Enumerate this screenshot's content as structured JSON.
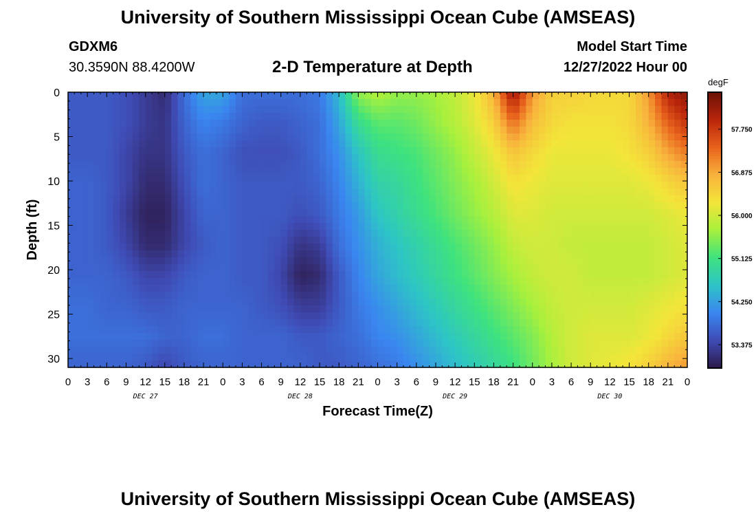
{
  "page": {
    "title": "University of Southern Mississippi Ocean Cube (AMSEAS)",
    "footer_title": "University of Southern Mississippi Ocean Cube (AMSEAS)",
    "station": "GDXM6",
    "coordinates": "30.3590N  88.4200W",
    "plot_title": "2-D Temperature at Depth",
    "start_time_label": "Model Start Time",
    "start_time_value": "12/27/2022 Hour 00"
  },
  "colors": {
    "colormap": [
      "#2d1a4a",
      "#3f4bb5",
      "#3a86f0",
      "#2ec4c7",
      "#3ee27e",
      "#a7f03d",
      "#f3e53a",
      "#f8b23c",
      "#e8621c",
      "#b9250b",
      "#6a1206"
    ],
    "frame": "#000000"
  },
  "chart_data": {
    "type": "heatmap",
    "xlabel": "Forecast Time(Z)",
    "ylabel": "Depth (ft)",
    "x": [
      0,
      3,
      6,
      9,
      12,
      15,
      18,
      21,
      24,
      27,
      30,
      33,
      36,
      39,
      42,
      45,
      48,
      51,
      54,
      57,
      60,
      63,
      66,
      69,
      72,
      75,
      78,
      81,
      84,
      87,
      90,
      93,
      96
    ],
    "x_tick_labels": [
      "0",
      "3",
      "6",
      "9",
      "12",
      "15",
      "18",
      "21",
      "0",
      "3",
      "6",
      "9",
      "12",
      "15",
      "18",
      "21",
      "0",
      "3",
      "6",
      "9",
      "12",
      "15",
      "18",
      "21",
      "0",
      "3",
      "6",
      "9",
      "12",
      "15",
      "18",
      "21",
      "0"
    ],
    "date_labels": [
      "DEC 27",
      "DEC 28",
      "DEC 29",
      "DEC 30"
    ],
    "date_label_hours": [
      12,
      36,
      60,
      84
    ],
    "xlim": [
      0,
      96
    ],
    "y_depths": [
      0,
      5,
      10,
      15,
      20,
      25,
      30
    ],
    "y_tick_labels": [
      "0",
      "5",
      "10",
      "15",
      "20",
      "25",
      "30"
    ],
    "ylim": [
      0,
      31
    ],
    "y_inverted": true,
    "z_label": "degF",
    "zlim": [
      52.9,
      58.5
    ],
    "colorbar_ticks": [
      53.375,
      54.25,
      55.125,
      56.0,
      56.875,
      57.75
    ],
    "colorbar_tick_labels": [
      "53.375",
      "54.250",
      "55.125",
      "56.000",
      "56.875",
      "57.750"
    ],
    "values": [
      [
        53.6,
        53.6,
        53.6,
        53.5,
        53.3,
        53.1,
        53.8,
        54.3,
        54.3,
        53.8,
        53.8,
        53.8,
        53.8,
        53.9,
        54.5,
        55.6,
        55.8,
        55.6,
        55.6,
        55.7,
        55.9,
        56.2,
        56.8,
        58.2,
        57.0,
        56.5,
        56.5,
        56.4,
        56.4,
        56.4,
        57.0,
        58.0,
        58.3
      ],
      [
        53.6,
        53.6,
        53.6,
        53.5,
        53.3,
        53.2,
        53.7,
        54.0,
        53.9,
        53.7,
        53.6,
        53.6,
        53.7,
        53.8,
        54.3,
        55.0,
        55.3,
        55.3,
        55.4,
        55.6,
        55.8,
        56.1,
        56.5,
        57.3,
        56.7,
        56.4,
        56.3,
        56.3,
        56.3,
        56.4,
        56.8,
        57.4,
        57.8
      ],
      [
        53.6,
        53.6,
        53.6,
        53.4,
        53.2,
        53.2,
        53.6,
        53.8,
        53.7,
        53.5,
        53.5,
        53.5,
        53.6,
        53.8,
        54.1,
        54.6,
        55.0,
        55.1,
        55.2,
        55.4,
        55.6,
        55.9,
        56.2,
        56.6,
        56.4,
        56.2,
        56.2,
        56.2,
        56.2,
        56.3,
        56.5,
        56.9,
        57.2
      ],
      [
        53.7,
        53.7,
        53.6,
        53.4,
        53.1,
        53.1,
        53.5,
        53.8,
        53.7,
        53.6,
        53.6,
        53.6,
        53.6,
        53.7,
        54.0,
        54.4,
        54.8,
        54.9,
        55.1,
        55.3,
        55.5,
        55.7,
        56.0,
        56.3,
        56.2,
        56.1,
        56.1,
        56.1,
        56.1,
        56.1,
        56.2,
        56.4,
        56.6
      ],
      [
        53.7,
        53.7,
        53.6,
        53.3,
        53.0,
        53.0,
        53.4,
        53.7,
        53.7,
        53.6,
        53.6,
        53.6,
        53.5,
        53.6,
        53.9,
        54.2,
        54.6,
        54.8,
        55.0,
        55.2,
        55.4,
        55.6,
        55.8,
        56.1,
        56.1,
        56.0,
        56.0,
        56.0,
        56.0,
        56.0,
        56.0,
        56.1,
        56.2
      ],
      [
        53.7,
        53.7,
        53.6,
        53.4,
        53.1,
        53.1,
        53.4,
        53.6,
        53.7,
        53.6,
        53.6,
        53.5,
        53.2,
        53.3,
        53.8,
        54.1,
        54.4,
        54.6,
        54.8,
        55.0,
        55.2,
        55.4,
        55.6,
        55.9,
        56.0,
        56.0,
        55.9,
        55.9,
        55.9,
        55.9,
        55.9,
        56.0,
        56.1
      ],
      [
        53.7,
        53.7,
        53.7,
        53.6,
        53.4,
        53.4,
        53.6,
        53.7,
        53.7,
        53.6,
        53.6,
        53.4,
        53.0,
        53.1,
        53.6,
        54.0,
        54.3,
        54.5,
        54.7,
        54.9,
        55.1,
        55.3,
        55.5,
        55.7,
        55.9,
        56.0,
        56.0,
        55.9,
        55.9,
        55.9,
        55.9,
        56.0,
        56.1
      ],
      [
        53.8,
        53.8,
        53.7,
        53.7,
        53.6,
        53.6,
        53.7,
        53.7,
        53.7,
        53.7,
        53.6,
        53.5,
        53.3,
        53.3,
        53.6,
        53.9,
        54.1,
        54.3,
        54.5,
        54.7,
        54.9,
        55.1,
        55.3,
        55.5,
        55.7,
        55.9,
        56.0,
        56.0,
        56.0,
        56.0,
        56.1,
        56.2,
        56.3
      ],
      [
        53.8,
        53.8,
        53.8,
        53.8,
        53.8,
        53.7,
        53.7,
        53.8,
        53.8,
        53.7,
        53.7,
        53.7,
        53.6,
        53.6,
        53.7,
        53.8,
        54.0,
        54.1,
        54.3,
        54.5,
        54.7,
        54.9,
        55.1,
        55.3,
        55.5,
        55.8,
        56.0,
        56.1,
        56.1,
        56.1,
        56.2,
        56.4,
        56.6
      ],
      [
        53.7,
        53.7,
        53.7,
        53.7,
        53.6,
        53.4,
        53.6,
        53.7,
        53.7,
        53.7,
        53.7,
        53.7,
        53.7,
        53.6,
        53.6,
        53.7,
        53.8,
        53.9,
        54.1,
        54.3,
        54.5,
        54.7,
        54.9,
        55.1,
        55.4,
        55.7,
        56.0,
        56.1,
        56.2,
        56.3,
        56.5,
        56.8,
        57.0
      ]
    ]
  }
}
